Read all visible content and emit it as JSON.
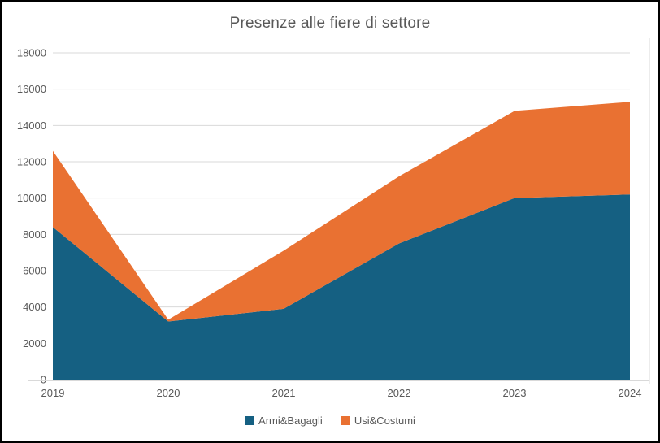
{
  "chart_data": {
    "type": "area",
    "stacked": true,
    "title": "Presenze alle fiere di settore",
    "x": [
      "2019",
      "2020",
      "2021",
      "2022",
      "2023",
      "2024"
    ],
    "series": [
      {
        "name": "Armi&Bagagli",
        "color": "#156082",
        "values": [
          8400,
          3200,
          3900,
          7500,
          10000,
          10200
        ]
      },
      {
        "name": "Usi&Costumi",
        "color": "#E97132",
        "values": [
          4200,
          100,
          3200,
          3700,
          4800,
          5100
        ]
      }
    ],
    "totals": [
      12600,
      3300,
      7100,
      11200,
      14800,
      15300
    ],
    "ylim": [
      0,
      18000
    ],
    "ytick_step": 2000,
    "grid": true,
    "legend_position": "bottom",
    "colors": {
      "text": "#595959",
      "gridline": "#d9d9d9",
      "axis_line": "#d9d9d9",
      "chart_border": "#d9d9d9",
      "frame": "#000000"
    }
  }
}
